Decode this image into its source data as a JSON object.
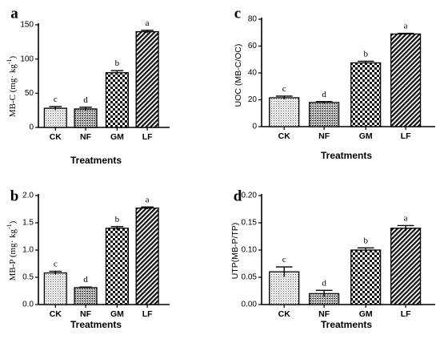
{
  "chart_data": [
    {
      "panel": "a",
      "type": "bar",
      "categories": [
        "CK",
        "NF",
        "GM",
        "LF"
      ],
      "values": [
        28,
        27,
        80,
        140
      ],
      "errors": [
        2.5,
        2.5,
        3,
        2
      ],
      "significance": [
        "c",
        "d",
        "b",
        "a"
      ],
      "ylabel": "MB-C (mg· kg⁻¹)",
      "ylabel_main": "MB-C (mg· kg",
      "ylabel_sup": "-1",
      "ylabel_tail": ")",
      "xlabel": "Treatments",
      "ylim": [
        0,
        150
      ],
      "yticks": [
        "0",
        "50",
        "100",
        "150"
      ]
    },
    {
      "panel": "b",
      "type": "bar",
      "categories": [
        "CK",
        "NF",
        "GM",
        "LF"
      ],
      "values": [
        0.58,
        0.31,
        1.4,
        1.77
      ],
      "errors": [
        0.03,
        0.01,
        0.03,
        0.02
      ],
      "significance": [
        "c",
        "d",
        "b",
        "a"
      ],
      "ylabel": "MB-P (mg· kg⁻¹)",
      "ylabel_main": "MB-P (mg· kg",
      "ylabel_sup": "-1",
      "ylabel_tail": ")",
      "xlabel": "Treatments",
      "ylim": [
        0,
        2.0
      ],
      "yticks": [
        "0.0",
        "0.5",
        "1.0",
        "1.5",
        "2.0"
      ]
    },
    {
      "panel": "c",
      "type": "bar",
      "categories": [
        "CK",
        "NF",
        "GM",
        "LF"
      ],
      "values": [
        21.5,
        18,
        47.5,
        69
      ],
      "errors": [
        1.2,
        0.6,
        1.2,
        0.5
      ],
      "significance": [
        "c",
        "d",
        "b",
        "a"
      ],
      "ylabel": "UOC (MB-C/OC)",
      "xlabel": "Treatments",
      "ylim": [
        0,
        80
      ],
      "yticks": [
        "0",
        "20",
        "40",
        "60",
        "80"
      ]
    },
    {
      "panel": "d",
      "type": "bar",
      "categories": [
        "CK",
        "NF",
        "GM",
        "LF"
      ],
      "values": [
        0.06,
        0.02,
        0.1,
        0.14
      ],
      "errors": [
        0.009,
        0.006,
        0.004,
        0.005
      ],
      "significance": [
        "c",
        "d",
        "b",
        "a"
      ],
      "ylabel": "UTP(MB-P/TP)",
      "xlabel": "Treatments",
      "ylim": [
        0,
        0.2
      ],
      "yticks": [
        "0.00",
        "0.05",
        "0.10",
        "0.15",
        "0.20"
      ]
    }
  ],
  "pattern_ids": [
    "dots",
    "hatch",
    "checker",
    "diag"
  ]
}
